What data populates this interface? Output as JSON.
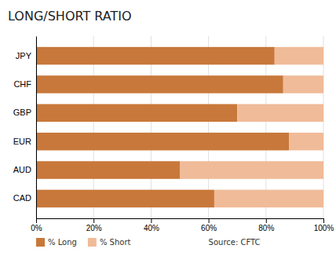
{
  "chart_data": {
    "type": "bar",
    "orientation": "horizontal",
    "stacked": true,
    "title": "LONG/SHORT RATIO",
    "categories": [
      "CAD",
      "AUD",
      "EUR",
      "GBP",
      "CHF",
      "JPY"
    ],
    "series": [
      {
        "name": "% Long",
        "color": "#C8783A",
        "values": [
          62,
          50,
          88,
          70,
          86,
          83
        ]
      },
      {
        "name": "% Short",
        "color": "#F0BB98",
        "values": [
          38,
          50,
          12,
          30,
          14,
          17
        ]
      }
    ],
    "xlim": [
      0,
      100
    ],
    "xticks": [
      {
        "value": 0,
        "label": "0%"
      },
      {
        "value": 20,
        "label": "20%"
      },
      {
        "value": 40,
        "label": "40%"
      },
      {
        "value": 60,
        "label": "60%"
      },
      {
        "value": 80,
        "label": "80%"
      },
      {
        "value": 100,
        "label": "100%"
      }
    ],
    "grid": true,
    "legend": "bottom",
    "annotations": [
      "Source: CFTC"
    ]
  }
}
